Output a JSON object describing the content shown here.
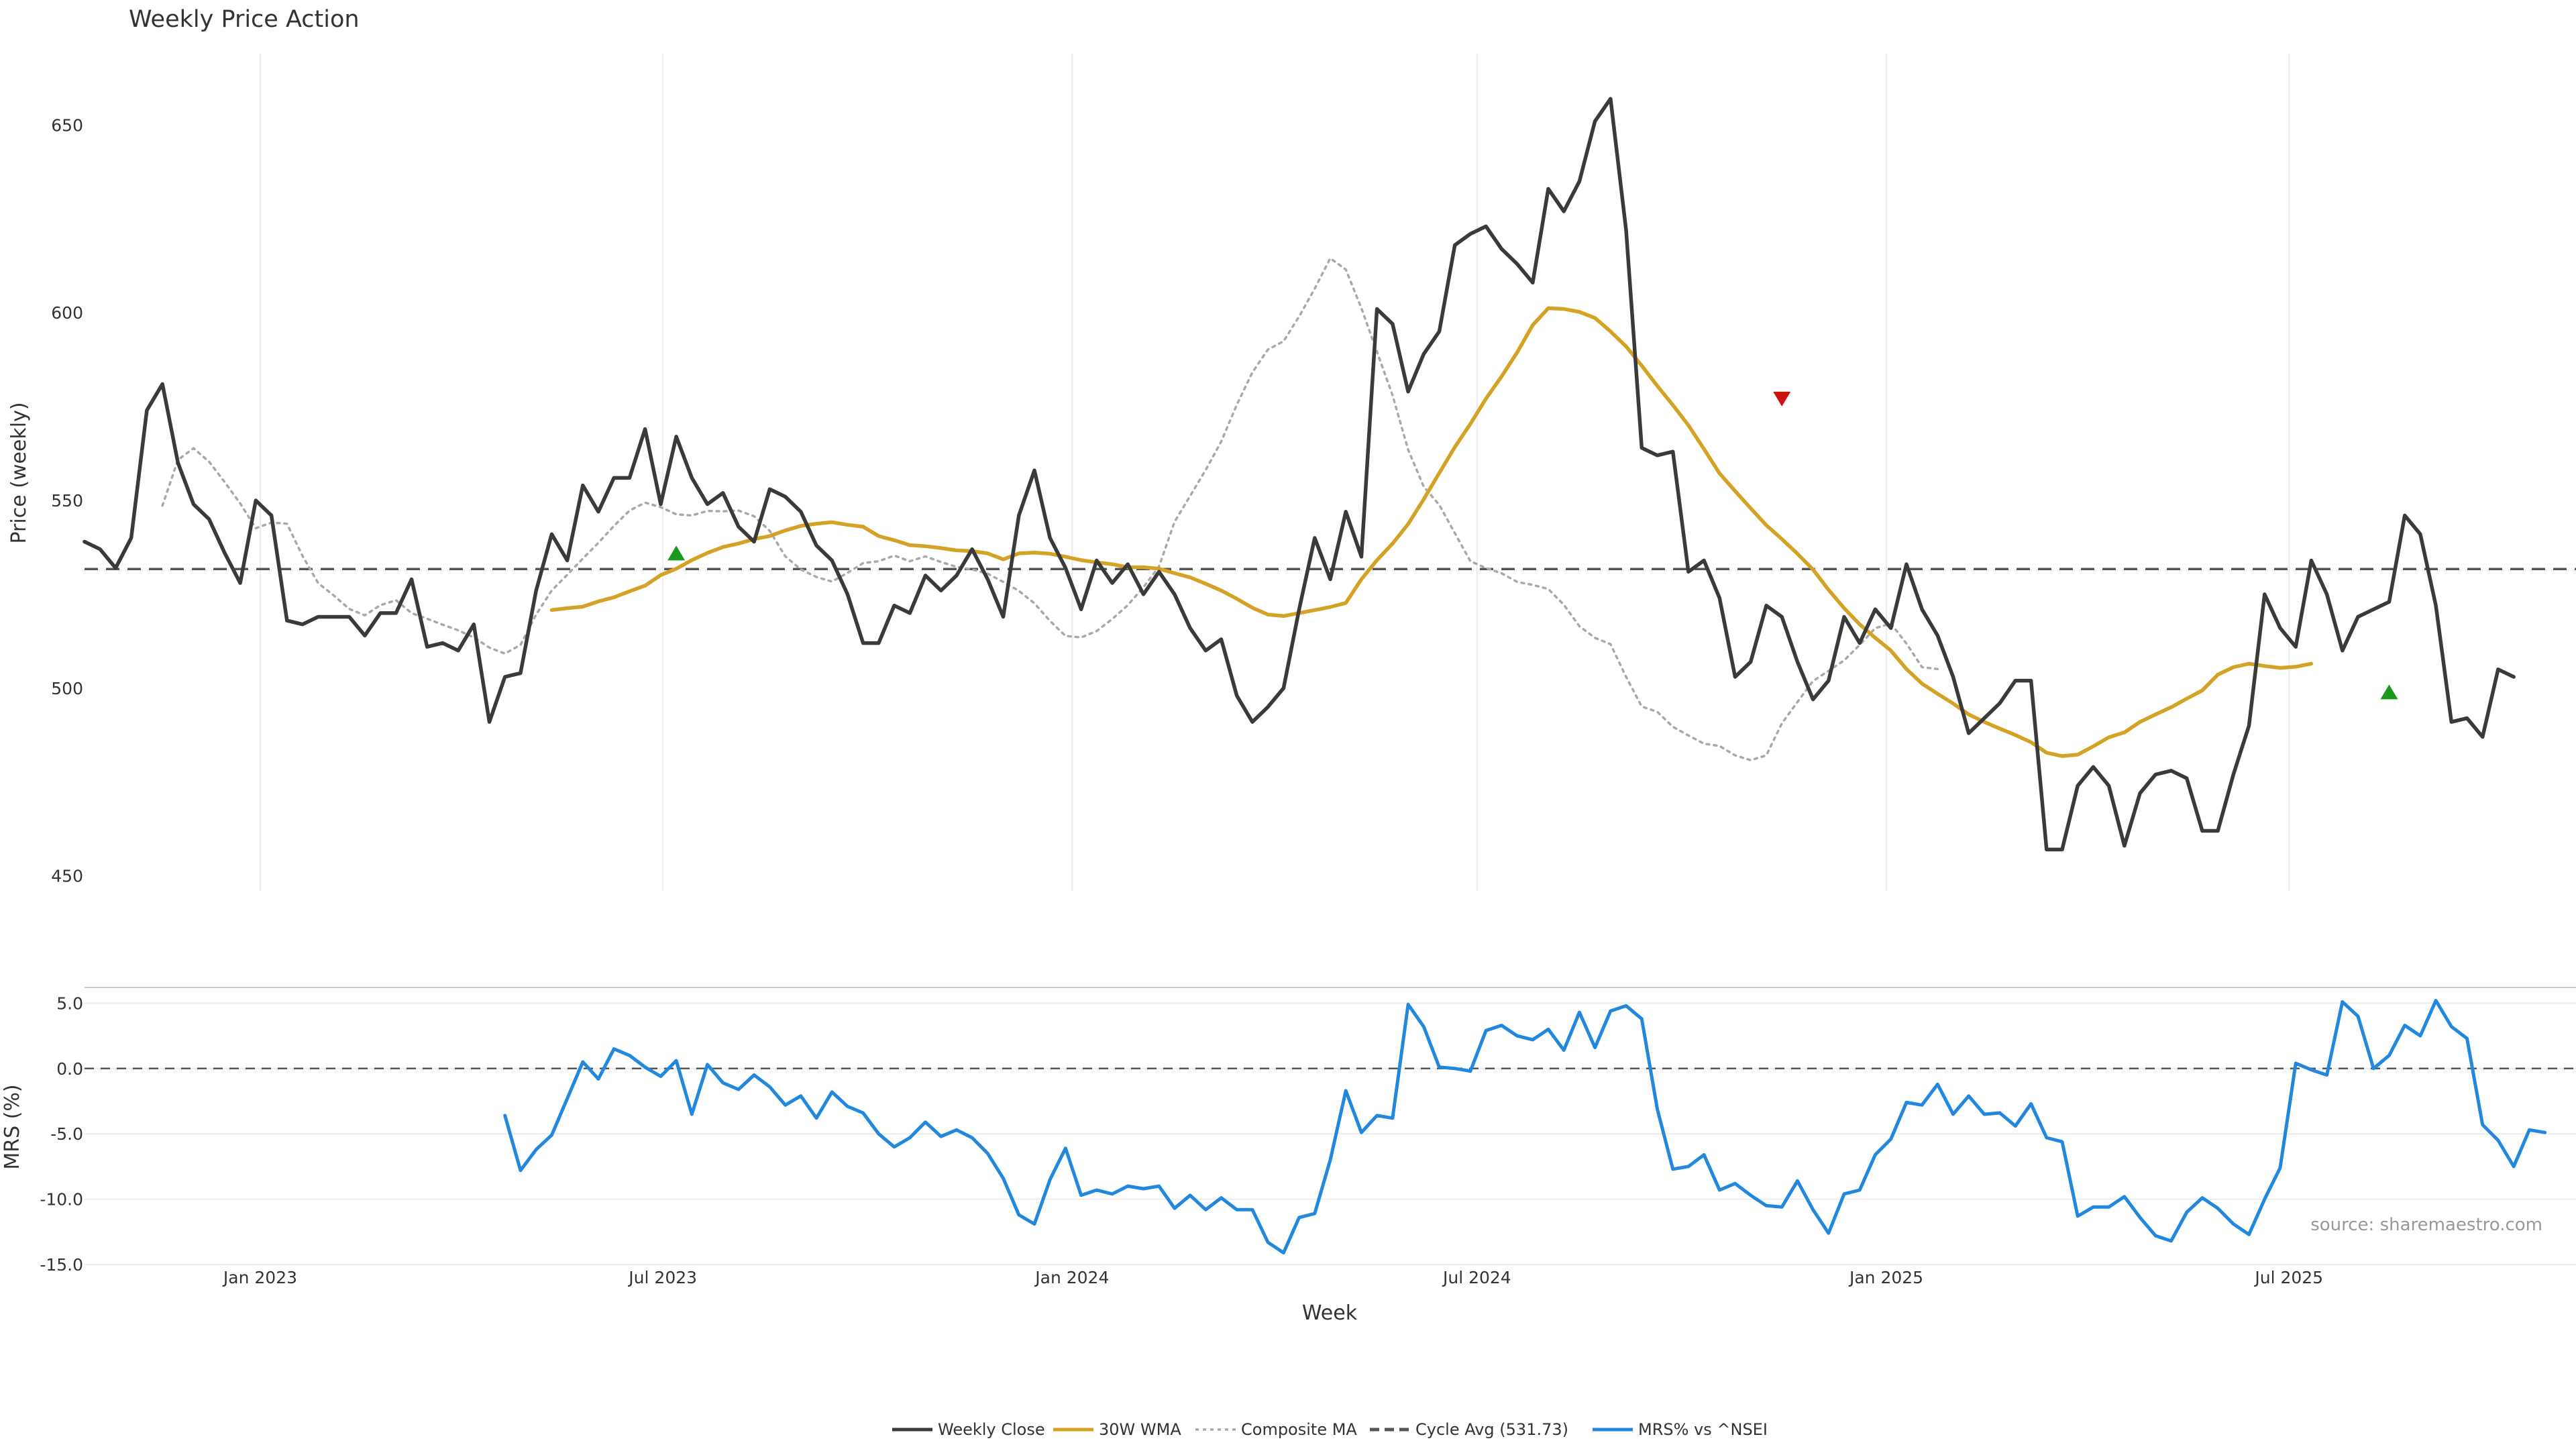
{
  "chart_data": [
    {
      "type": "line",
      "title": "Weekly Price Action",
      "ylabel": "Price (weekly)",
      "xlabel": "",
      "ylim": [
        446,
        669
      ],
      "yticks": [
        650,
        600,
        550,
        500,
        450
      ],
      "x_start": "2022-10-14",
      "x_end": "2025-11-07",
      "grid": "vertical",
      "legend_position": "bottom-center",
      "reference_line": {
        "name": "Cycle Avg (531.73)",
        "value": 531.73,
        "color": "#555555",
        "style": "dashed"
      },
      "series": [
        {
          "name": "Weekly Close",
          "color": "#3a3a3a",
          "style": "solid",
          "start": "2022-10-14",
          "values": [
            539,
            537,
            532,
            540,
            574,
            581,
            560,
            549,
            545,
            536,
            528,
            550,
            546,
            518,
            517,
            519,
            519,
            519,
            514,
            520,
            520,
            529,
            511,
            512,
            510,
            517,
            491,
            503,
            504,
            526,
            541,
            534,
            554,
            547,
            556,
            556,
            569,
            549,
            567,
            556,
            549,
            552,
            543,
            539,
            553,
            551,
            547,
            538,
            534,
            525,
            512,
            512,
            522,
            520,
            530,
            526,
            530,
            537,
            529,
            519,
            546,
            558,
            540,
            532,
            521,
            534,
            528,
            533,
            525,
            531,
            525,
            516,
            510,
            513,
            498,
            491,
            495,
            500,
            521,
            540,
            529,
            547,
            535,
            601,
            597,
            579,
            589,
            595,
            618,
            621,
            623,
            617,
            613,
            608,
            633,
            627,
            635,
            651,
            657,
            622,
            564,
            562,
            563,
            531,
            534,
            524,
            503,
            507,
            522,
            519,
            507,
            497,
            502,
            519,
            512,
            521,
            516,
            533,
            521,
            514,
            503,
            488,
            492,
            496,
            502,
            502,
            457,
            457,
            474,
            479,
            474,
            458,
            472,
            477,
            478,
            476,
            462,
            462,
            477,
            490,
            525,
            516,
            511,
            534,
            525,
            510,
            519,
            521,
            523,
            546,
            541,
            522,
            491,
            492,
            487,
            505,
            503
          ]
        },
        {
          "name": "30W WMA",
          "color": "#d4a326",
          "style": "solid",
          "start": "2023-05-12",
          "values": [
            520.8,
            521.3,
            521.7,
            523.1,
            524.2,
            525.8,
            527.3,
            530.1,
            531.8,
            534.1,
            536.0,
            537.6,
            538.5,
            539.7,
            540.5,
            542.0,
            543.2,
            543.8,
            544.2,
            543.5,
            543.0,
            540.5,
            539.4,
            538.1,
            537.8,
            537.3,
            536.7,
            536.5,
            535.9,
            534.3,
            535.9,
            536.1,
            535.8,
            535.0,
            534.1,
            533.5,
            533.0,
            532.2,
            532.2,
            531.8,
            530.6,
            529.5,
            527.8,
            526.0,
            523.8,
            521.4,
            519.6,
            519.2,
            520.0,
            520.8,
            521.6,
            522.7,
            529.0,
            534.1,
            538.5,
            543.7,
            550.3,
            557.3,
            564.2,
            570.4,
            577.1,
            583.0,
            589.4,
            596.7,
            601.2,
            601.0,
            600.2,
            598.6,
            595.0,
            591.0,
            585.9,
            580.5,
            575.4,
            570.0,
            563.7,
            557.2,
            552.5,
            547.9,
            543.4,
            539.7,
            535.8,
            531.6,
            526.2,
            521.3,
            517.0,
            513.4,
            510.0,
            505.1,
            501.2,
            498.5,
            495.9,
            493.0,
            491.0,
            489.2,
            487.5,
            485.6,
            482.8,
            481.9,
            482.3,
            484.5,
            486.9,
            488.2,
            491.0,
            493.0,
            494.9,
            497.2,
            499.4,
            503.6,
            505.6,
            506.5,
            505.9,
            505.4,
            505.7,
            506.5
          ]
        },
        {
          "name": "Composite MA",
          "color": "#aaaaaa",
          "style": "dotted",
          "start": "2022-11-18",
          "values": [
            548.6,
            560.8,
            563.9,
            560.3,
            554.9,
            549.2,
            542.6,
            544.1,
            543.8,
            535.2,
            528.0,
            524.7,
            521.1,
            519.4,
            522.1,
            523.4,
            520.0,
            518.5,
            516.9,
            515.4,
            513.5,
            510.8,
            509.2,
            511.5,
            519.6,
            526.0,
            530.2,
            534.5,
            538.7,
            543.2,
            547.3,
            549.4,
            548.2,
            546.3,
            546.0,
            547.2,
            547.1,
            547.3,
            545.8,
            541.9,
            535.1,
            531.6,
            529.6,
            528.4,
            530.7,
            533.3,
            533.8,
            535.3,
            533.8,
            535.1,
            533.6,
            532.3,
            531.6,
            530.5,
            528.3,
            525.9,
            522.6,
            517.9,
            513.9,
            513.5,
            515.2,
            518.4,
            522.1,
            526.9,
            532.4,
            544.3,
            551.2,
            558.1,
            565.7,
            575.5,
            584.1,
            590.2,
            592.4,
            599.0,
            606.4,
            614.5,
            611.5,
            601.2,
            589.6,
            578.0,
            563.5,
            553.7,
            548.8,
            541.3,
            533.8,
            532.0,
            530.6,
            528.3,
            527.5,
            526.4,
            522.2,
            516.5,
            513.4,
            511.7,
            503.0,
            495.1,
            493.7,
            489.7,
            487.4,
            485.2,
            484.6,
            482.1,
            480.8,
            482.1,
            490.6,
            496.3,
            501.9,
            504.6,
            507.4,
            511.5,
            516.0,
            517.2,
            511.9,
            505.6,
            505.1
          ]
        }
      ],
      "markers": [
        {
          "date": "2023-07-07",
          "value": 536,
          "direction": "up",
          "color": "#1a9a1a"
        },
        {
          "date": "2024-11-15",
          "value": 577,
          "direction": "down",
          "color": "#cc1111"
        },
        {
          "date": "2025-08-15",
          "value": 499,
          "direction": "up",
          "color": "#1a9a1a"
        }
      ]
    },
    {
      "type": "line",
      "title": "",
      "ylabel": "MRS (%)",
      "xlabel": "Week",
      "ylim": [
        -15,
        6.2
      ],
      "yticks": [
        "5.0",
        "0.0",
        "-5.0",
        "-10.0",
        "-15.0"
      ],
      "xticks": [
        "Jan 2023",
        "Jul 2023",
        "Jan 2024",
        "Jul 2024",
        "Jan 2025",
        "Jul 2025"
      ],
      "xtick_dates": [
        "2023-01-01",
        "2023-07-01",
        "2024-01-01",
        "2024-07-01",
        "2025-01-01",
        "2025-07-01"
      ],
      "x_start": "2022-10-14",
      "x_end": "2025-11-07",
      "grid": "horizontal",
      "reference_line": {
        "value": 0,
        "color": "#555555",
        "style": "dashed"
      },
      "series": [
        {
          "name": "MRS% vs ^NSEI",
          "color": "#2288dd",
          "style": "solid",
          "start": "2023-04-21",
          "values": [
            -3.6,
            -7.8,
            -6.2,
            -5.1,
            -2.3,
            0.5,
            -0.8,
            1.5,
            1.0,
            0.1,
            -0.6,
            0.6,
            -3.5,
            0.3,
            -1.1,
            -1.6,
            -0.5,
            -1.4,
            -2.8,
            -2.1,
            -3.8,
            -1.8,
            -2.9,
            -3.4,
            -5.0,
            -6.0,
            -5.3,
            -4.1,
            -5.2,
            -4.7,
            -5.3,
            -6.5,
            -8.4,
            -11.2,
            -11.9,
            -8.5,
            -6.1,
            -9.7,
            -9.3,
            -9.6,
            -9.0,
            -9.2,
            -9.0,
            -10.7,
            -9.7,
            -10.8,
            -9.9,
            -10.8,
            -10.8,
            -13.3,
            -14.1,
            -11.4,
            -11.1,
            -7.0,
            -1.7,
            -4.9,
            -3.6,
            -3.8,
            4.9,
            3.2,
            0.1,
            0.0,
            -0.2,
            2.9,
            3.3,
            2.5,
            2.2,
            3.0,
            1.4,
            4.3,
            1.6,
            4.4,
            4.8,
            3.8,
            -3.1,
            -7.7,
            -7.5,
            -6.6,
            -9.3,
            -8.8,
            -9.7,
            -10.5,
            -10.6,
            -8.6,
            -10.8,
            -12.6,
            -9.6,
            -9.3,
            -6.6,
            -5.4,
            -2.6,
            -2.8,
            -1.2,
            -3.5,
            -2.1,
            -3.5,
            -3.4,
            -4.4,
            -2.7,
            -5.3,
            -5.6,
            -11.3,
            -10.6,
            -10.6,
            -9.8,
            -11.4,
            -12.8,
            -13.2,
            -11.0,
            -9.9,
            -10.7,
            -11.9,
            -12.7,
            -10.0,
            -7.6,
            0.4,
            -0.1,
            -0.5,
            5.1,
            4.0,
            0.0,
            1.0,
            3.3,
            2.5,
            5.2,
            3.2,
            2.3,
            -4.3,
            -5.5,
            -7.5,
            -4.7,
            -4.9
          ]
        }
      ]
    }
  ],
  "legend": [
    {
      "label": "Weekly Close",
      "color": "#3a3a3a",
      "style": "solid"
    },
    {
      "label": "30W WMA",
      "color": "#d4a326",
      "style": "solid"
    },
    {
      "label": "Composite MA",
      "color": "#aaaaaa",
      "style": "dotted"
    },
    {
      "label": "Cycle Avg (531.73)",
      "color": "#555555",
      "style": "dashed"
    },
    {
      "label": "MRS% vs ^NSEI",
      "color": "#2288dd",
      "style": "solid"
    }
  ],
  "source_text": "source: sharemaestro.com"
}
